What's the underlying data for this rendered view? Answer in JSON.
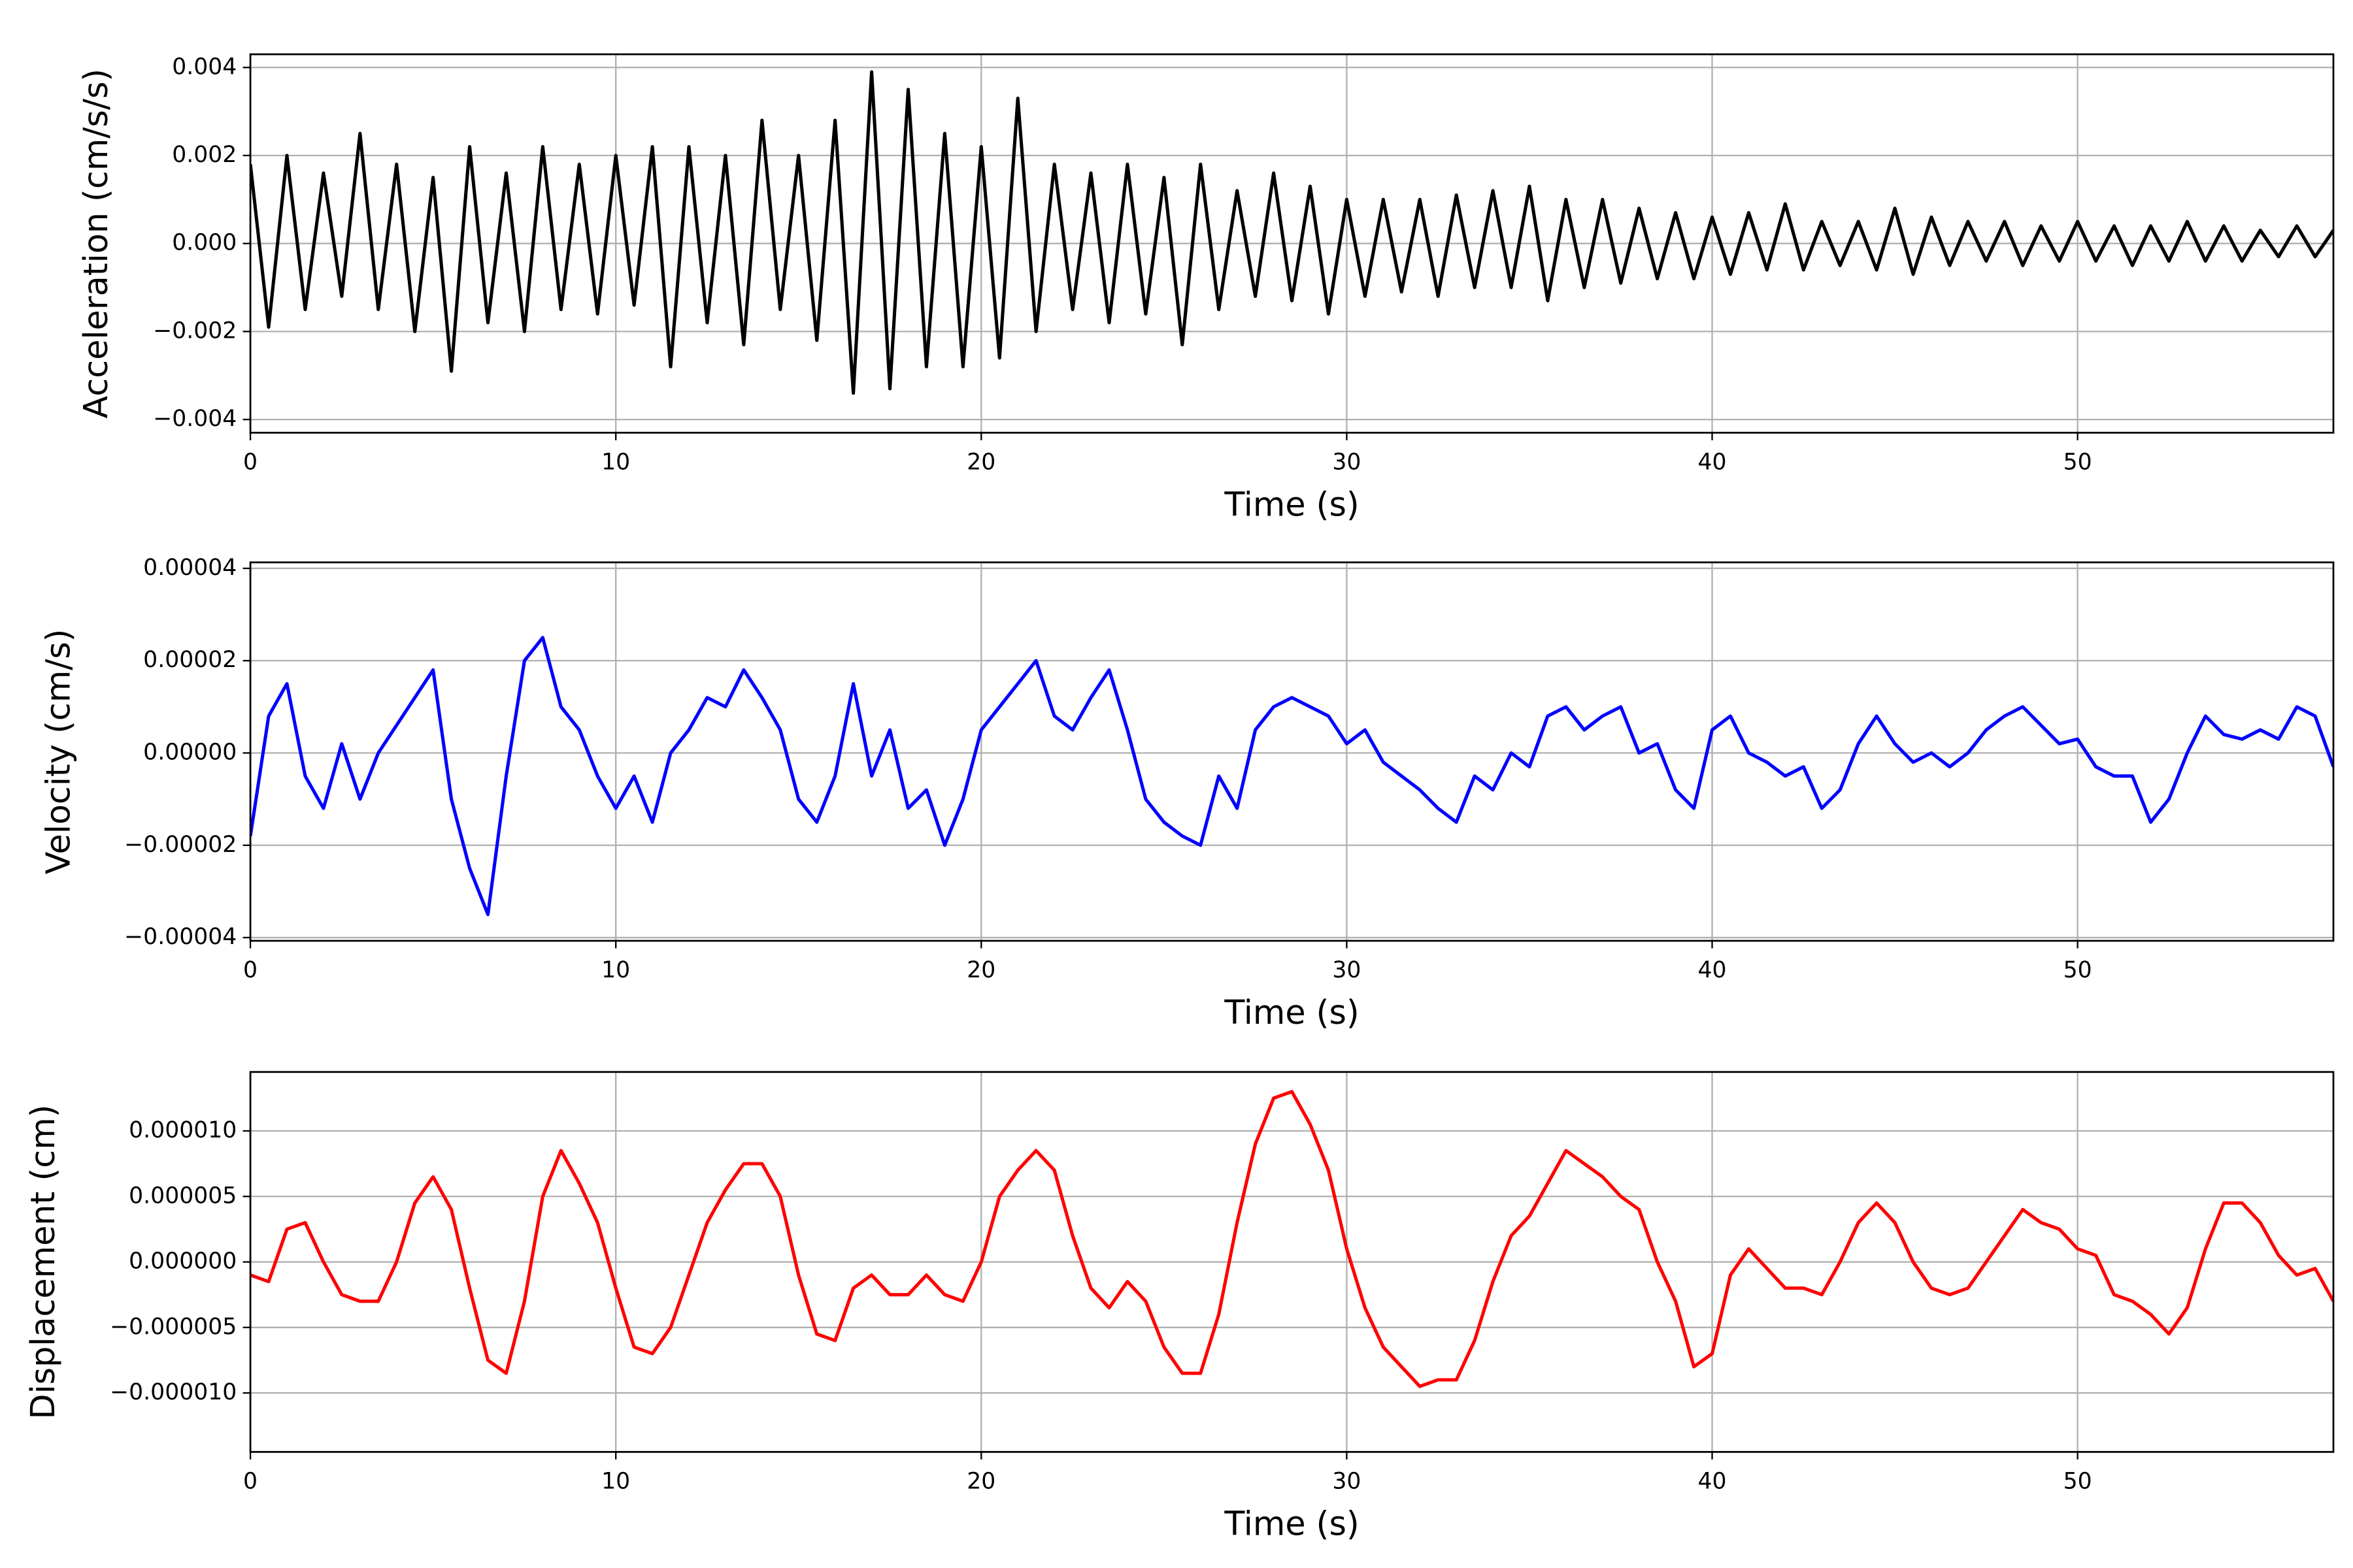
{
  "chart_data": [
    {
      "type": "line",
      "x_label": "Time (s)",
      "y_label": "Acceleration (cm/s/s)",
      "color": "#000000",
      "x": [
        0,
        0.5,
        1,
        1.5,
        2,
        2.5,
        3,
        3.5,
        4,
        4.5,
        5,
        5.5,
        6,
        6.5,
        7,
        7.5,
        8,
        8.5,
        9,
        9.5,
        10,
        10.5,
        11,
        11.5,
        12,
        12.5,
        13,
        13.5,
        14,
        14.5,
        15,
        15.5,
        16,
        16.5,
        17,
        17.5,
        18,
        18.5,
        19,
        19.5,
        20,
        20.5,
        21,
        21.5,
        22,
        22.5,
        23,
        23.5,
        24,
        24.5,
        25,
        25.5,
        26,
        26.5,
        27,
        27.5,
        28,
        28.5,
        29,
        29.5,
        30,
        30.5,
        31,
        31.5,
        32,
        32.5,
        33,
        33.5,
        34,
        34.5,
        35,
        35.5,
        36,
        36.5,
        37,
        37.5,
        38,
        38.5,
        39,
        39.5,
        40,
        40.5,
        41,
        41.5,
        42,
        42.5,
        43,
        43.5,
        44,
        44.5,
        45,
        45.5,
        46,
        46.5,
        47,
        47.5,
        48,
        48.5,
        49,
        49.5,
        50,
        50.5,
        51,
        51.5,
        52,
        52.5,
        53,
        53.5,
        54,
        54.5,
        55,
        55.5,
        56,
        56.5,
        57
      ],
      "values": [
        0.0018,
        -0.0019,
        0.002,
        -0.0015,
        0.0016,
        -0.0012,
        0.0025,
        -0.0015,
        0.0018,
        -0.002,
        0.0015,
        -0.0029,
        0.0022,
        -0.0018,
        0.0016,
        -0.002,
        0.0022,
        -0.0015,
        0.0018,
        -0.0016,
        0.002,
        -0.0014,
        0.0022,
        -0.0028,
        0.0022,
        -0.0018,
        0.002,
        -0.0023,
        0.0028,
        -0.0015,
        0.002,
        -0.0022,
        0.0028,
        -0.0034,
        0.0039,
        -0.0033,
        0.0035,
        -0.0028,
        0.0025,
        -0.0028,
        0.0022,
        -0.0026,
        0.0033,
        -0.002,
        0.0018,
        -0.0015,
        0.0016,
        -0.0018,
        0.0018,
        -0.0016,
        0.0015,
        -0.0023,
        0.0018,
        -0.0015,
        0.0012,
        -0.0012,
        0.0016,
        -0.0013,
        0.0013,
        -0.0016,
        0.001,
        -0.0012,
        0.001,
        -0.0011,
        0.001,
        -0.0012,
        0.0011,
        -0.001,
        0.0012,
        -0.001,
        0.0013,
        -0.0013,
        0.001,
        -0.001,
        0.001,
        -0.0009,
        0.0008,
        -0.0008,
        0.0007,
        -0.0008,
        0.0006,
        -0.0007,
        0.0007,
        -0.0006,
        0.0009,
        -0.0006,
        0.0005,
        -0.0005,
        0.0005,
        -0.0006,
        0.0008,
        -0.0007,
        0.0006,
        -0.0005,
        0.0005,
        -0.0004,
        0.0005,
        -0.0005,
        0.0004,
        -0.0004,
        0.0005,
        -0.0004,
        0.0004,
        -0.0005,
        0.0004,
        -0.0004,
        0.0005,
        -0.0004,
        0.0004,
        -0.0004,
        0.0003,
        -0.0003,
        0.0004,
        -0.0003,
        0.0003
      ],
      "xlim": [
        0,
        57
      ],
      "ylim": [
        -0.0043,
        0.0043
      ],
      "xticks": [
        0,
        10,
        20,
        30,
        40,
        50
      ],
      "yticks": [
        {
          "value": -0.004,
          "label": "−0.004"
        },
        {
          "value": -0.002,
          "label": "−0.002"
        },
        {
          "value": 0,
          "label": "0.000"
        },
        {
          "value": 0.002,
          "label": "0.002"
        },
        {
          "value": 0.004,
          "label": "0.004"
        }
      ],
      "grid": true
    },
    {
      "type": "line",
      "x_label": "Time (s)",
      "y_label": "Velocity (cm/s)",
      "color": "#0000ff",
      "x": [
        0,
        0.5,
        1,
        1.5,
        2,
        2.5,
        3,
        3.5,
        4,
        4.5,
        5,
        5.5,
        6,
        6.5,
        7,
        7.5,
        8,
        8.5,
        9,
        9.5,
        10,
        10.5,
        11,
        11.5,
        12,
        12.5,
        13,
        13.5,
        14,
        14.5,
        15,
        15.5,
        16,
        16.5,
        17,
        17.5,
        18,
        18.5,
        19,
        19.5,
        20,
        20.5,
        21,
        21.5,
        22,
        22.5,
        23,
        23.5,
        24,
        24.5,
        25,
        25.5,
        26,
        26.5,
        27,
        27.5,
        28,
        28.5,
        29,
        29.5,
        30,
        30.5,
        31,
        31.5,
        32,
        32.5,
        33,
        33.5,
        34,
        34.5,
        35,
        35.5,
        36,
        36.5,
        37,
        37.5,
        38,
        38.5,
        39,
        39.5,
        40,
        40.5,
        41,
        41.5,
        42,
        42.5,
        43,
        43.5,
        44,
        44.5,
        45,
        45.5,
        46,
        46.5,
        47,
        47.5,
        48,
        48.5,
        49,
        49.5,
        50,
        50.5,
        51,
        51.5,
        52,
        52.5,
        53,
        53.5,
        54,
        54.5,
        55,
        55.5,
        56,
        56.5,
        57
      ],
      "values": [
        -1.8e-05,
        8e-06,
        1.5e-05,
        -5e-06,
        -1.2e-05,
        2e-06,
        -1e-05,
        0,
        6e-06,
        1.2e-05,
        1.8e-05,
        -1e-05,
        -2.5e-05,
        -3.5e-05,
        -5e-06,
        2e-05,
        2.5e-05,
        1e-05,
        5e-06,
        -5e-06,
        -1.2e-05,
        -5e-06,
        -1.5e-05,
        0,
        5e-06,
        1.2e-05,
        1e-05,
        1.8e-05,
        1.2e-05,
        5e-06,
        -1e-05,
        -1.5e-05,
        -5e-06,
        1.5e-05,
        -5e-06,
        5e-06,
        -1.2e-05,
        -8e-06,
        -2e-05,
        -1e-05,
        5e-06,
        1e-05,
        1.5e-05,
        2e-05,
        8e-06,
        5e-06,
        1.2e-05,
        1.8e-05,
        5e-06,
        -1e-05,
        -1.5e-05,
        -1.8e-05,
        -2e-05,
        -5e-06,
        -1.2e-05,
        5e-06,
        1e-05,
        1.2e-05,
        1e-05,
        8e-06,
        2e-06,
        5e-06,
        -2e-06,
        -5e-06,
        -8e-06,
        -1.2e-05,
        -1.5e-05,
        -5e-06,
        -8e-06,
        0,
        -3e-06,
        8e-06,
        1e-05,
        5e-06,
        8e-06,
        1e-05,
        0,
        2e-06,
        -8e-06,
        -1.2e-05,
        5e-06,
        8e-06,
        0,
        -2e-06,
        -5e-06,
        -3e-06,
        -1.2e-05,
        -8e-06,
        2e-06,
        8e-06,
        2e-06,
        -2e-06,
        0,
        -3e-06,
        0,
        5e-06,
        8e-06,
        1e-05,
        6e-06,
        2e-06,
        3e-06,
        -3e-06,
        -5e-06,
        -5e-06,
        -1.5e-05,
        -1e-05,
        0,
        8e-06,
        4e-06,
        3e-06,
        5e-06,
        3e-06,
        1e-05,
        8e-06,
        -3e-06
      ],
      "xlim": [
        0,
        57
      ],
      "ylim": [
        -4.07e-05,
        4.13e-05
      ],
      "xticks": [
        0,
        10,
        20,
        30,
        40,
        50
      ],
      "yticks": [
        {
          "value": -4e-05,
          "label": "−0.00004"
        },
        {
          "value": -2e-05,
          "label": "−0.00002"
        },
        {
          "value": 0,
          "label": "0.00000"
        },
        2e-05,
        4e-05
      ],
      "grid": true
    },
    {
      "type": "line",
      "x_label": "Time (s)",
      "y_label": "Displacement (cm)",
      "color": "#ff0000",
      "x": [
        0,
        0.5,
        1,
        1.5,
        2,
        2.5,
        3,
        3.5,
        4,
        4.5,
        5,
        5.5,
        6,
        6.5,
        7,
        7.5,
        8,
        8.5,
        9,
        9.5,
        10,
        10.5,
        11,
        11.5,
        12,
        12.5,
        13,
        13.5,
        14,
        14.5,
        15,
        15.5,
        16,
        16.5,
        17,
        17.5,
        18,
        18.5,
        19,
        19.5,
        20,
        20.5,
        21,
        21.5,
        22,
        22.5,
        23,
        23.5,
        24,
        24.5,
        25,
        25.5,
        26,
        26.5,
        27,
        27.5,
        28,
        28.5,
        29,
        29.5,
        30,
        30.5,
        31,
        31.5,
        32,
        32.5,
        33,
        33.5,
        34,
        34.5,
        35,
        35.5,
        36,
        36.5,
        37,
        37.5,
        38,
        38.5,
        39,
        39.5,
        40,
        40.5,
        41,
        41.5,
        42,
        42.5,
        43,
        43.5,
        44,
        44.5,
        45,
        45.5,
        46,
        46.5,
        47,
        47.5,
        48,
        48.5,
        49,
        49.5,
        50,
        50.5,
        51,
        51.5,
        52,
        52.5,
        53,
        53.5,
        54,
        54.5,
        55,
        55.5,
        56,
        56.5,
        57
      ],
      "values": [
        -1e-06,
        -1.5e-06,
        2.5e-06,
        3e-06,
        0,
        -2.5e-06,
        -3e-06,
        -3e-06,
        0,
        4.5e-06,
        6.5e-06,
        4e-06,
        -2e-06,
        -7.5e-06,
        -8.5e-06,
        -3e-06,
        5e-06,
        8.5e-06,
        6e-06,
        3e-06,
        -2e-06,
        -6.5e-06,
        -7e-06,
        -5e-06,
        -1e-06,
        3e-06,
        5.5e-06,
        7.5e-06,
        7.5e-06,
        5e-06,
        -1e-06,
        -5.5e-06,
        -6e-06,
        -2e-06,
        -1e-06,
        -2.5e-06,
        -2.5e-06,
        -1e-06,
        -2.5e-06,
        -3e-06,
        0,
        5e-06,
        7e-06,
        8.5e-06,
        7e-06,
        2e-06,
        -2e-06,
        -3.5e-06,
        -1.5e-06,
        -3e-06,
        -6.5e-06,
        -8.5e-06,
        -8.5e-06,
        -4e-06,
        3e-06,
        9e-06,
        1.25e-05,
        1.3e-05,
        1.05e-05,
        7e-06,
        1e-06,
        -3.5e-06,
        -6.5e-06,
        -8e-06,
        -9.5e-06,
        -9e-06,
        -9e-06,
        -6e-06,
        -1.5e-06,
        2e-06,
        3.5e-06,
        6e-06,
        8.5e-06,
        7.5e-06,
        6.5e-06,
        5e-06,
        4e-06,
        0,
        -3e-06,
        -8e-06,
        -7e-06,
        -1e-06,
        1e-06,
        -5e-07,
        -2e-06,
        -2e-06,
        -2.5e-06,
        0,
        3e-06,
        4.5e-06,
        3e-06,
        0,
        -2e-06,
        -2.5e-06,
        -2e-06,
        0,
        2e-06,
        4e-06,
        3e-06,
        2.5e-06,
        1e-06,
        5e-07,
        -2.5e-06,
        -3e-06,
        -4e-06,
        -5.5e-06,
        -3.5e-06,
        1e-06,
        4.5e-06,
        4.5e-06,
        3e-06,
        5e-07,
        -1e-06,
        -5e-07,
        -3e-06
      ],
      "xlim": [
        0,
        57
      ],
      "ylim": [
        -1.45e-05,
        1.45e-05
      ],
      "xticks": [
        0,
        10,
        20,
        30,
        40,
        50
      ],
      "yticks": [
        {
          "value": -1e-05,
          "label": "−0.000010"
        },
        {
          "value": -5e-06,
          "label": "−0.000005"
        },
        {
          "value": 0,
          "label": "0.000000"
        },
        {
          "value": 5e-06,
          "label": "0.000005"
        },
        {
          "value": 1e-05,
          "label": "0.000010"
        }
      ],
      "grid": true
    }
  ]
}
